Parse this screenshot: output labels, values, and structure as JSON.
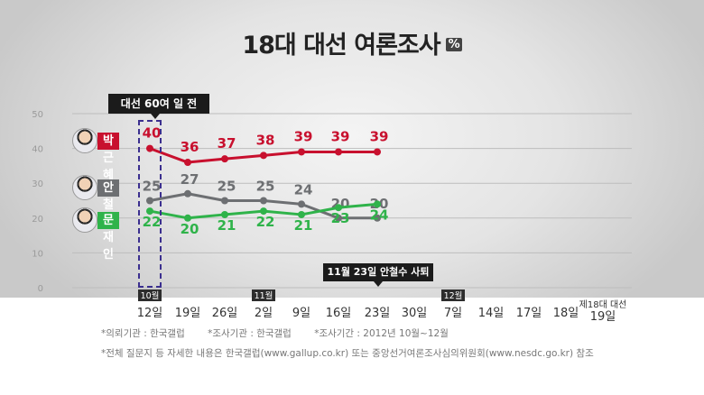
{
  "title": "18대 대선 여론조사",
  "unit": "%",
  "banner_label": "대선 60여 일 전",
  "event_label": "11월 23일 안철수 사퇴",
  "candidates": [
    {
      "name": "박근혜",
      "color": "#c8102e"
    },
    {
      "name": "안철수",
      "color": "#6d6f72"
    },
    {
      "name": "문재인",
      "color": "#2fb34a"
    }
  ],
  "month_tags": [
    "10월",
    "11월",
    "12월"
  ],
  "footer": {
    "client": "*의뢰기관 : 한국갤럽",
    "surveyor": "*조사기관 : 한국갤럽",
    "period": "*조사기간 : 2012년 10월~12월",
    "note": "*전체 질문지 등 자세한 내용은 한국갤럽(www.gallup.co.kr) 또는 중앙선거여론조사심의위원회(www.nesdc.go.kr) 참조"
  },
  "chart_data": {
    "type": "line",
    "categories": [
      "12일",
      "19일",
      "26일",
      "2일",
      "9일",
      "16일",
      "23일",
      "30일",
      "7일",
      "14일",
      "17일",
      "18일",
      "19일"
    ],
    "category_months": [
      "10월",
      "",
      "",
      "11월",
      "",
      "",
      "",
      "",
      "12월",
      "",
      "",
      "",
      ""
    ],
    "last_category_caption": "제18대 대선",
    "ylim": [
      0,
      50
    ],
    "yticks": [
      0,
      10,
      20,
      30,
      40,
      50
    ],
    "grid": true,
    "series": [
      {
        "name": "박근혜",
        "color": "#c8102e",
        "values": [
          40,
          36,
          37,
          38,
          39,
          39,
          39,
          null,
          null,
          null,
          null,
          null,
          null
        ]
      },
      {
        "name": "안철수",
        "color": "#6d6f72",
        "values": [
          25,
          27,
          25,
          25,
          24,
          20,
          20,
          null,
          null,
          null,
          null,
          null,
          null
        ]
      },
      {
        "name": "문재인",
        "color": "#2fb34a",
        "values": [
          22,
          20,
          21,
          22,
          21,
          23,
          24,
          null,
          null,
          null,
          null,
          null,
          null
        ]
      }
    ]
  }
}
